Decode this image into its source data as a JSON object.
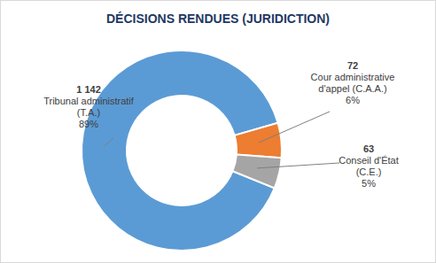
{
  "chart_data": {
    "type": "pie",
    "title": "DÉCISIONS RENDUES (JURIDICTION)",
    "categories": [
      "Tribunal administratif (T.A.)",
      "Cour administrative d'appel (C.A.A.)",
      "Conseil d'État (C.E.)"
    ],
    "values": [
      1142,
      72,
      63
    ],
    "value_labels": [
      "1 142",
      "72",
      "63"
    ],
    "percentages": [
      89,
      6,
      5
    ],
    "percentage_labels": [
      "89%",
      "6%",
      "5%"
    ],
    "colors": [
      "#5b9bd5",
      "#ed7d31",
      "#a5a5a5"
    ],
    "data_labels": true
  }
}
